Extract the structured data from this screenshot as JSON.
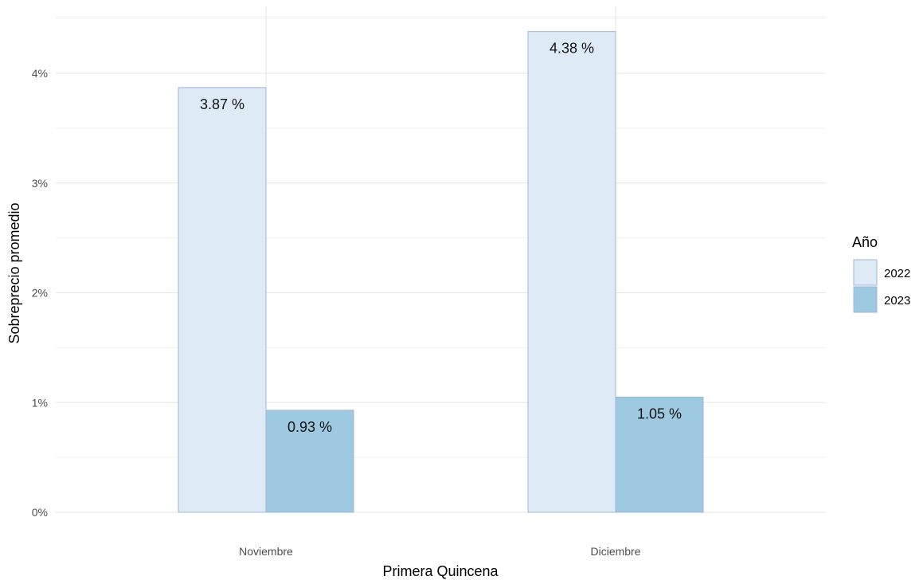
{
  "chart_data": {
    "type": "bar",
    "title": "",
    "xlabel": "Primera Quincena",
    "ylabel": "Sobreprecio promedio",
    "categories": [
      "Noviembre",
      "Diciembre"
    ],
    "series": [
      {
        "name": "2022",
        "values": [
          3.87,
          4.38
        ],
        "labels": [
          "3.87 %",
          "4.38 %"
        ],
        "color": "#deebf7"
      },
      {
        "name": "2023",
        "values": [
          0.93,
          1.05
        ],
        "labels": [
          "0.93 %",
          "1.05 %"
        ],
        "color": "#9ecae1"
      }
    ],
    "bar_border_color": "#a2b4d4",
    "ylim": [
      0,
      4.5
    ],
    "y_ticks": [
      0,
      1,
      2,
      3,
      4
    ],
    "y_tick_labels": [
      "0%",
      "1%",
      "2%",
      "3%",
      "4%"
    ],
    "grid": true,
    "legend": {
      "title": "Año",
      "position": "right"
    }
  }
}
